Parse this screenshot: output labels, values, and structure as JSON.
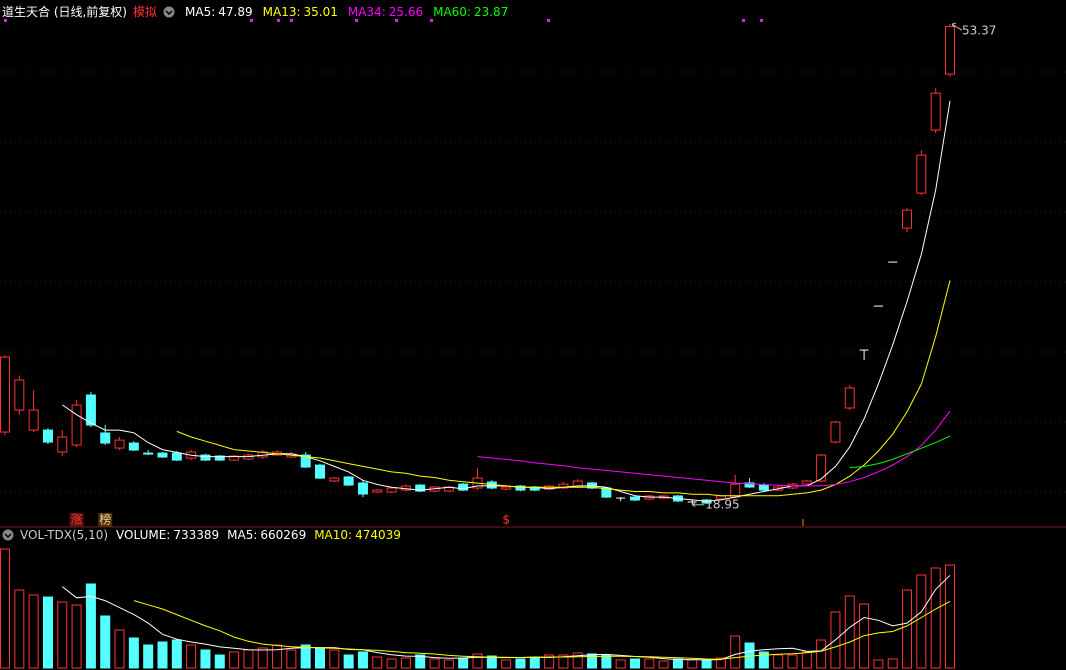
{
  "chart_data": [
    {
      "type": "candlestick",
      "title": "道生天合 (日线,前复权)",
      "tag": "模拟",
      "up_color": "#ff3232",
      "down_color": "#54ffff",
      "flat_color": "#ffffff",
      "ylim": [
        17.5,
        55.1
      ],
      "markers": [
        "涨",
        "榜",
        "$"
      ],
      "ohlc": [
        [
          24.16,
          29.67,
          23.94,
          29.53
        ],
        [
          25.73,
          28.2,
          25.4,
          27.88
        ],
        [
          24.3,
          27.16,
          24.16,
          25.73
        ],
        [
          24.3,
          24.44,
          23.3,
          23.44
        ],
        [
          22.73,
          24.3,
          22.44,
          23.8
        ],
        [
          23.23,
          26.45,
          23.08,
          26.09
        ],
        [
          26.81,
          27.02,
          24.51,
          24.66
        ],
        [
          24.09,
          24.66,
          23.23,
          23.37
        ],
        [
          23.01,
          23.8,
          22.87,
          23.58
        ],
        [
          23.37,
          23.51,
          22.8,
          22.87
        ],
        [
          22.65,
          22.87,
          22.51,
          22.6
        ],
        [
          22.65,
          22.73,
          22.3,
          22.37
        ],
        [
          22.65,
          22.8,
          22.08,
          22.15
        ],
        [
          22.29,
          22.87,
          22.15,
          22.73
        ],
        [
          22.51,
          22.6,
          22.08,
          22.15
        ],
        [
          22.44,
          22.51,
          22.08,
          22.15
        ],
        [
          22.15,
          22.51,
          22.08,
          22.44
        ],
        [
          22.22,
          22.6,
          22.15,
          22.51
        ],
        [
          22.37,
          22.87,
          22.22,
          22.73
        ],
        [
          22.51,
          22.87,
          22.44,
          22.73
        ],
        [
          22.37,
          22.73,
          22.3,
          22.58
        ],
        [
          22.51,
          22.73,
          21.58,
          21.65
        ],
        [
          21.79,
          21.9,
          20.8,
          20.86
        ],
        [
          20.65,
          20.94,
          20.58,
          20.86
        ],
        [
          20.94,
          21.01,
          20.3,
          20.36
        ],
        [
          20.51,
          20.72,
          19.5,
          19.72
        ],
        [
          19.86,
          20.07,
          19.79,
          20.0
        ],
        [
          19.86,
          20.22,
          19.79,
          20.15
        ],
        [
          20.0,
          20.43,
          19.93,
          20.29
        ],
        [
          20.36,
          20.43,
          19.86,
          19.93
        ],
        [
          19.93,
          20.29,
          19.86,
          20.22
        ],
        [
          19.93,
          20.29,
          19.86,
          20.22
        ],
        [
          20.43,
          20.51,
          19.93,
          20.0
        ],
        [
          20.15,
          21.58,
          20.0,
          20.86
        ],
        [
          20.58,
          20.72,
          20.07,
          20.15
        ],
        [
          20.07,
          20.29,
          20.0,
          20.22
        ],
        [
          20.29,
          20.36,
          19.93,
          20.0
        ],
        [
          20.22,
          20.29,
          19.93,
          20.0
        ],
        [
          20.07,
          20.36,
          20.0,
          20.29
        ],
        [
          20.15,
          20.58,
          20.07,
          20.43
        ],
        [
          20.22,
          20.79,
          20.15,
          20.65
        ],
        [
          20.51,
          20.58,
          20.07,
          20.15
        ],
        [
          20.15,
          20.22,
          19.43,
          19.5
        ],
        [
          19.43,
          19.5,
          19.22,
          19.43
        ],
        [
          19.5,
          19.58,
          19.22,
          19.29
        ],
        [
          19.36,
          19.65,
          19.29,
          19.58
        ],
        [
          19.43,
          19.65,
          19.36,
          19.58
        ],
        [
          19.58,
          19.65,
          19.15,
          19.22
        ],
        [
          19.15,
          19.29,
          18.95,
          19.15
        ],
        [
          19.29,
          19.36,
          19.0,
          19.07
        ],
        [
          19.36,
          19.65,
          19.29,
          19.58
        ],
        [
          19.5,
          21.08,
          19.43,
          20.43
        ],
        [
          20.51,
          20.86,
          20.15,
          20.22
        ],
        [
          20.36,
          20.51,
          19.93,
          20.0
        ],
        [
          20.0,
          20.29,
          19.93,
          20.22
        ],
        [
          20.15,
          20.51,
          20.07,
          20.43
        ],
        [
          20.43,
          20.72,
          20.36,
          20.65
        ],
        [
          20.65,
          22.58,
          20.58,
          22.51
        ],
        [
          23.44,
          24.95,
          23.37,
          24.87
        ],
        [
          25.88,
          27.52,
          25.73,
          27.31
        ],
        [
          30.03,
          30.03,
          29.31,
          30.03
        ],
        [
          33.18,
          33.18,
          33.18,
          33.18
        ],
        [
          36.33,
          36.33,
          36.33,
          36.33
        ],
        [
          38.76,
          40.2,
          38.48,
          40.05
        ],
        [
          41.27,
          44.35,
          41.12,
          43.99
        ],
        [
          45.78,
          48.79,
          45.57,
          48.43
        ],
        [
          49.79,
          53.37,
          49.6,
          53.2
        ]
      ],
      "series": [
        {
          "name": "MA5:",
          "color": "#ffffff",
          "values": [
            null,
            null,
            null,
            null,
            26.1,
            25.4,
            24.8,
            24.3,
            24.3,
            24.1,
            23.4,
            22.9,
            22.7,
            22.5,
            22.4,
            22.4,
            22.4,
            22.4,
            22.5,
            22.6,
            22.6,
            22.4,
            22.1,
            21.7,
            21.3,
            20.7,
            20.4,
            20.2,
            20.1,
            20.0,
            20.1,
            20.2,
            20.1,
            20.3,
            20.3,
            20.3,
            20.2,
            20.2,
            20.1,
            20.2,
            20.3,
            20.3,
            20.2,
            19.9,
            19.6,
            19.5,
            19.5,
            19.4,
            19.3,
            19.2,
            19.3,
            19.5,
            19.7,
            19.9,
            20.1,
            20.3,
            20.3,
            20.8,
            21.7,
            23.1,
            25.1,
            27.6,
            30.4,
            33.5,
            36.9,
            41.5,
            47.89
          ]
        },
        {
          "name": "MA13:",
          "color": "#ffff00",
          "values": [
            null,
            null,
            null,
            null,
            null,
            null,
            null,
            null,
            null,
            null,
            null,
            null,
            24.2,
            23.8,
            23.5,
            23.2,
            22.9,
            22.8,
            22.7,
            22.6,
            22.5,
            22.4,
            22.3,
            22.1,
            21.9,
            21.7,
            21.5,
            21.3,
            21.2,
            21.0,
            20.9,
            20.7,
            20.6,
            20.5,
            20.4,
            20.3,
            20.2,
            20.2,
            20.2,
            20.2,
            20.2,
            20.2,
            20.1,
            20.0,
            19.9,
            19.9,
            19.8,
            19.8,
            19.7,
            19.7,
            19.6,
            19.6,
            19.6,
            19.6,
            19.6,
            19.7,
            19.8,
            20.0,
            20.4,
            21.0,
            21.8,
            22.8,
            24.0,
            25.6,
            27.6,
            31.0,
            35.01
          ]
        },
        {
          "name": "MA34:",
          "color": "#ff00ff",
          "values": [
            null,
            null,
            null,
            null,
            null,
            null,
            null,
            null,
            null,
            null,
            null,
            null,
            null,
            null,
            null,
            null,
            null,
            null,
            null,
            null,
            null,
            null,
            null,
            null,
            null,
            null,
            null,
            null,
            null,
            null,
            null,
            null,
            null,
            22.4,
            22.3,
            22.2,
            22.1,
            21.95,
            21.85,
            21.75,
            21.6,
            21.5,
            21.4,
            21.3,
            21.2,
            21.1,
            21.0,
            20.9,
            20.8,
            20.7,
            20.6,
            20.5,
            20.45,
            20.4,
            20.35,
            20.3,
            20.3,
            20.3,
            20.4,
            20.6,
            20.9,
            21.3,
            21.8,
            22.4,
            23.2,
            24.3,
            25.66
          ]
        },
        {
          "name": "MA60:",
          "color": "#00ff00",
          "values": [
            null,
            null,
            null,
            null,
            null,
            null,
            null,
            null,
            null,
            null,
            null,
            null,
            null,
            null,
            null,
            null,
            null,
            null,
            null,
            null,
            null,
            null,
            null,
            null,
            null,
            null,
            null,
            null,
            null,
            null,
            null,
            null,
            null,
            null,
            null,
            null,
            null,
            null,
            null,
            null,
            null,
            null,
            null,
            null,
            null,
            null,
            null,
            null,
            null,
            null,
            null,
            null,
            null,
            null,
            null,
            null,
            null,
            null,
            null,
            21.6,
            21.7,
            21.9,
            22.2,
            22.6,
            23.0,
            23.4,
            23.87
          ]
        }
      ]
    },
    {
      "type": "volume",
      "title": "VOL-TDX(5,10)",
      "ylim": [
        0,
        876000
      ],
      "series": [
        {
          "name": "VOLUME:",
          "color": "#ffffff",
          "values": [
            847400,
            555400,
            519800,
            505600,
            470000,
            448600,
            598200,
            370300,
            270600,
            213600,
            163800,
            185100,
            199400,
            163800,
            128200,
            92600,
            113900,
            128200,
            142400,
            163800,
            128200,
            163800,
            142400,
            128200,
            92600,
            113900,
            78300,
            64100,
            71200,
            92600,
            64100,
            57000,
            71200,
            99700,
            85500,
            57000,
            64100,
            78300,
            92600,
            92600,
            106800,
            99700,
            92600,
            57000,
            64100,
            64100,
            49800,
            64100,
            57000,
            57000,
            71200,
            227900,
            178000,
            113900,
            92600,
            92600,
            113900,
            199400,
            398800,
            512700,
            455700,
            57000,
            64100,
            555400,
            662300,
            712100,
            733389
          ]
        },
        {
          "name": "MA5:",
          "color": "#ffffff",
          "values": [
            null,
            null,
            null,
            null,
            580000,
            500000,
            510000,
            480000,
            430000,
            380000,
            320000,
            240000,
            205000,
            185000,
            170000,
            150000,
            140000,
            130000,
            128000,
            130000,
            140000,
            145000,
            145000,
            145000,
            132000,
            130000,
            110000,
            95000,
            85000,
            84000,
            74000,
            70000,
            71000,
            77000,
            75000,
            74000,
            75000,
            77000,
            75000,
            80000,
            87000,
            94000,
            97000,
            90000,
            82000,
            76000,
            67000,
            60000,
            60000,
            58000,
            60000,
            97000,
            120000,
            130000,
            137000,
            141000,
            118000,
            122000,
            200000,
            290000,
            360000,
            340000,
            300000,
            320000,
            400000,
            560000,
            660269
          ]
        },
        {
          "name": "MA10:",
          "color": "#ffff00",
          "values": [
            null,
            null,
            null,
            null,
            null,
            null,
            null,
            null,
            null,
            480000,
            450000,
            420000,
            380000,
            340000,
            300000,
            265000,
            220000,
            190000,
            170000,
            160000,
            152000,
            147000,
            143000,
            140000,
            135000,
            130000,
            125000,
            118000,
            110000,
            105000,
            100000,
            90000,
            84000,
            80000,
            77000,
            76000,
            75000,
            76000,
            78000,
            78000,
            80000,
            82000,
            84000,
            84000,
            82000,
            80000,
            77000,
            73000,
            69000,
            64000,
            62000,
            74000,
            85000,
            92000,
            98000,
            101000,
            108000,
            120000,
            150000,
            185000,
            230000,
            250000,
            260000,
            300000,
            360000,
            420000,
            474039
          ]
        }
      ]
    }
  ]
}
